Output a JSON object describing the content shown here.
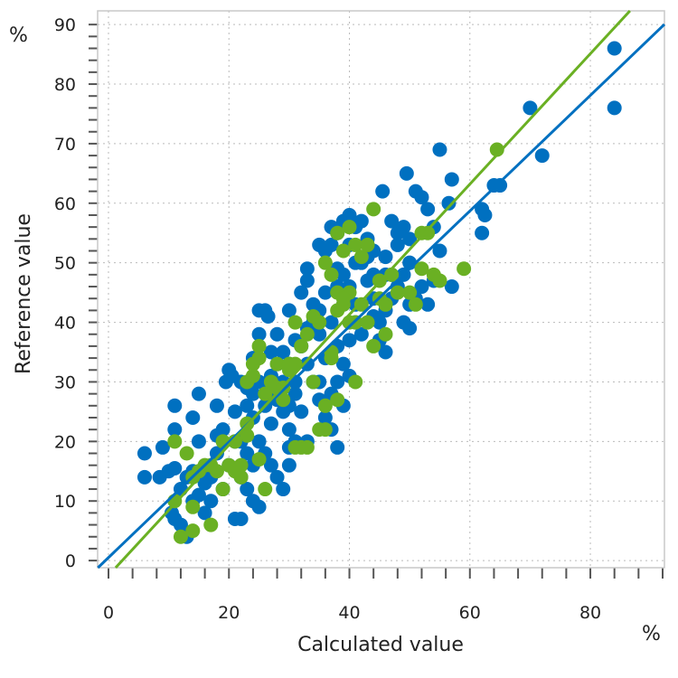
{
  "chart_data": {
    "type": "scatter",
    "title": "",
    "xlabel": "Calculated value",
    "ylabel": "Reference value",
    "x_unit": "%",
    "y_unit": "%",
    "xlim": [
      -1.8,
      92.3
    ],
    "ylim": [
      -1.2,
      92.3
    ],
    "x_ticks": [
      0,
      20,
      40,
      60,
      80
    ],
    "y_ticks": [
      0,
      10,
      20,
      30,
      40,
      50,
      60,
      70,
      80,
      90
    ],
    "grid": true,
    "legend": "none",
    "colors": {
      "series_a": "#0070c0",
      "series_b": "#6ab023"
    },
    "series": [
      {
        "color": "#0070c0",
        "points": [
          [
            6,
            18
          ],
          [
            6,
            14
          ],
          [
            8.5,
            14
          ],
          [
            9,
            19
          ],
          [
            10,
            15
          ],
          [
            11,
            15.5
          ],
          [
            11,
            22
          ],
          [
            11,
            26
          ],
          [
            14,
            24
          ],
          [
            15,
            28
          ],
          [
            10.5,
            8
          ],
          [
            11,
            7
          ],
          [
            12,
            6
          ],
          [
            13,
            4
          ],
          [
            12,
            12
          ],
          [
            13,
            14
          ],
          [
            14,
            15
          ],
          [
            15,
            11
          ],
          [
            16,
            13
          ],
          [
            14,
            10
          ],
          [
            17,
            14
          ],
          [
            18,
            18
          ],
          [
            18,
            21
          ],
          [
            19,
            22
          ],
          [
            19.5,
            30
          ],
          [
            20,
            32
          ],
          [
            20.5,
            31
          ],
          [
            21,
            25
          ],
          [
            21,
            20
          ],
          [
            22,
            20
          ],
          [
            22,
            7
          ],
          [
            21,
            7
          ],
          [
            22,
            14
          ],
          [
            23,
            18
          ],
          [
            23,
            12
          ],
          [
            24,
            10
          ],
          [
            24,
            16
          ],
          [
            25,
            20
          ],
          [
            24,
            24
          ],
          [
            23,
            26
          ],
          [
            24,
            28
          ],
          [
            25,
            30
          ],
          [
            23,
            29
          ],
          [
            25,
            38
          ],
          [
            25,
            42
          ],
          [
            26,
            42
          ],
          [
            26.5,
            41
          ],
          [
            27,
            35
          ],
          [
            28,
            38
          ],
          [
            27,
            31
          ],
          [
            28,
            27
          ],
          [
            29,
            25
          ],
          [
            30,
            22
          ],
          [
            30,
            19
          ],
          [
            30,
            16
          ],
          [
            31,
            20
          ],
          [
            29,
            35
          ],
          [
            30,
            33
          ],
          [
            31,
            37
          ],
          [
            32,
            36
          ],
          [
            32,
            45
          ],
          [
            33,
            47
          ],
          [
            33,
            49
          ],
          [
            34,
            43
          ],
          [
            35,
            42
          ],
          [
            35,
            38
          ],
          [
            34,
            30
          ],
          [
            35,
            27
          ],
          [
            36,
            24
          ],
          [
            37,
            22
          ],
          [
            38,
            19
          ],
          [
            37,
            28
          ],
          [
            38,
            30
          ],
          [
            39,
            26
          ],
          [
            39,
            33
          ],
          [
            40,
            31
          ],
          [
            40,
            37
          ],
          [
            41,
            40
          ],
          [
            41,
            43
          ],
          [
            40,
            46
          ],
          [
            39,
            48
          ],
          [
            38,
            49
          ],
          [
            36,
            52
          ],
          [
            37,
            53
          ],
          [
            35,
            53
          ],
          [
            37,
            56
          ],
          [
            38,
            55
          ],
          [
            39,
            57
          ],
          [
            40,
            58
          ],
          [
            41,
            56
          ],
          [
            42,
            57
          ],
          [
            43,
            54
          ],
          [
            44,
            52
          ],
          [
            42,
            50
          ],
          [
            43,
            47
          ],
          [
            44,
            44
          ],
          [
            45,
            40
          ],
          [
            45,
            37
          ],
          [
            46,
            35
          ],
          [
            46,
            42
          ],
          [
            47,
            44
          ],
          [
            48,
            46
          ],
          [
            47,
            48
          ],
          [
            46,
            51
          ],
          [
            48,
            55
          ],
          [
            47,
            57
          ],
          [
            49,
            56
          ],
          [
            50,
            54
          ],
          [
            50,
            50
          ],
          [
            49,
            48
          ],
          [
            50,
            43
          ],
          [
            49,
            40
          ],
          [
            50,
            39
          ],
          [
            51,
            44
          ],
          [
            52,
            46
          ],
          [
            53,
            43
          ],
          [
            54,
            47
          ],
          [
            55,
            52
          ],
          [
            54,
            56
          ],
          [
            53,
            59
          ],
          [
            52,
            61
          ],
          [
            51,
            62
          ],
          [
            49.5,
            65
          ],
          [
            55,
            69
          ],
          [
            57,
            64
          ],
          [
            56.5,
            60
          ],
          [
            57,
            46
          ],
          [
            62,
            59
          ],
          [
            62.5,
            58
          ],
          [
            62,
            55
          ],
          [
            64,
            63
          ],
          [
            65,
            63
          ],
          [
            70,
            76
          ],
          [
            72,
            68
          ],
          [
            84,
            86
          ],
          [
            84,
            76
          ],
          [
            45.5,
            62
          ],
          [
            48,
            53
          ],
          [
            44,
            48
          ],
          [
            38,
            46
          ],
          [
            36,
            45
          ],
          [
            34,
            40
          ],
          [
            33,
            39
          ],
          [
            31,
            30
          ],
          [
            29,
            30
          ],
          [
            28,
            33
          ],
          [
            26,
            26
          ],
          [
            27,
            23
          ],
          [
            26,
            18
          ],
          [
            27,
            16
          ],
          [
            28,
            14
          ],
          [
            29,
            12
          ],
          [
            25,
            9
          ],
          [
            20,
            16
          ],
          [
            19,
            12
          ],
          [
            17,
            10
          ],
          [
            16,
            8
          ],
          [
            15,
            20
          ],
          [
            18,
            26
          ],
          [
            30,
            42
          ],
          [
            31,
            28
          ],
          [
            32,
            25
          ],
          [
            33,
            33
          ],
          [
            36,
            34
          ],
          [
            37,
            40
          ],
          [
            39,
            43
          ],
          [
            42,
            38
          ],
          [
            44,
            41
          ],
          [
            46,
            48
          ],
          [
            30,
            26
          ],
          [
            22,
            30
          ],
          [
            24,
            34
          ],
          [
            27,
            29
          ],
          [
            33,
            20
          ],
          [
            35,
            30
          ],
          [
            38,
            36
          ],
          [
            41,
            50
          ],
          [
            40,
            53
          ],
          [
            43,
            51
          ]
        ],
        "fit_line": {
          "slope": 0.97,
          "intercept": 0.5
        }
      },
      {
        "color": "#6ab023",
        "points": [
          [
            11,
            20
          ],
          [
            11,
            10
          ],
          [
            12,
            4
          ],
          [
            14,
            5
          ],
          [
            14,
            9
          ],
          [
            13,
            18
          ],
          [
            14,
            14
          ],
          [
            15,
            15
          ],
          [
            16,
            16
          ],
          [
            17,
            6
          ],
          [
            17,
            16
          ],
          [
            18,
            15
          ],
          [
            19,
            12
          ],
          [
            19,
            20
          ],
          [
            20,
            16
          ],
          [
            21,
            15
          ],
          [
            21,
            20
          ],
          [
            22,
            16
          ],
          [
            22,
            14
          ],
          [
            23,
            21
          ],
          [
            23,
            23
          ],
          [
            23,
            30
          ],
          [
            24,
            33
          ],
          [
            24,
            31
          ],
          [
            25,
            36
          ],
          [
            25,
            34
          ],
          [
            25,
            17
          ],
          [
            26,
            12
          ],
          [
            26,
            28
          ],
          [
            27,
            30
          ],
          [
            28,
            29
          ],
          [
            28,
            33
          ],
          [
            29,
            27
          ],
          [
            30,
            32
          ],
          [
            31,
            33
          ],
          [
            31,
            40
          ],
          [
            32,
            19
          ],
          [
            33,
            19
          ],
          [
            32,
            36
          ],
          [
            33,
            38
          ],
          [
            34,
            41
          ],
          [
            35,
            40
          ],
          [
            34,
            30
          ],
          [
            35,
            22
          ],
          [
            36,
            22
          ],
          [
            36,
            26
          ],
          [
            37,
            35
          ],
          [
            37,
            34
          ],
          [
            38,
            27
          ],
          [
            38,
            45
          ],
          [
            38,
            42
          ],
          [
            39,
            43
          ],
          [
            40,
            45
          ],
          [
            40,
            40
          ],
          [
            41,
            40
          ],
          [
            41,
            30
          ],
          [
            42,
            43
          ],
          [
            39,
            52
          ],
          [
            38,
            55
          ],
          [
            40,
            56
          ],
          [
            41,
            53
          ],
          [
            42,
            51
          ],
          [
            43,
            53
          ],
          [
            44,
            59
          ],
          [
            45,
            47
          ],
          [
            45,
            44
          ],
          [
            46,
            43
          ],
          [
            46,
            38
          ],
          [
            44,
            36
          ],
          [
            47,
            48
          ],
          [
            48,
            45
          ],
          [
            50,
            45
          ],
          [
            51,
            43
          ],
          [
            52,
            49
          ],
          [
            52,
            55
          ],
          [
            53,
            55
          ],
          [
            54,
            48
          ],
          [
            55,
            47
          ],
          [
            59,
            49
          ],
          [
            64.5,
            69
          ],
          [
            36,
            50
          ],
          [
            37,
            48
          ],
          [
            39,
            44
          ],
          [
            43,
            40
          ],
          [
            30,
            33
          ],
          [
            31,
            19
          ],
          [
            29,
            29
          ]
        ],
        "fit_line": {
          "slope": 1.095,
          "intercept": -2.5
        }
      }
    ]
  }
}
